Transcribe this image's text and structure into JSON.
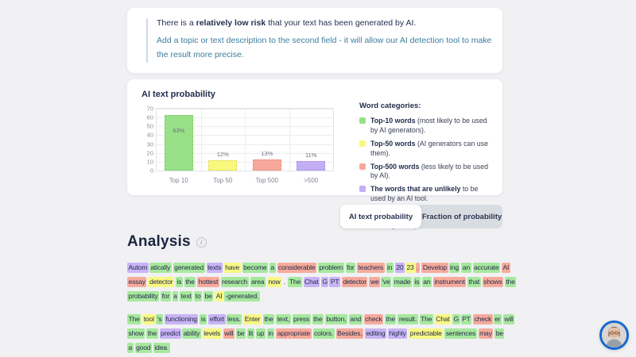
{
  "risk_card": {
    "line1_prefix": "There is a ",
    "line1_bold": "relatively low risk",
    "line1_suffix": " that your text has been generated by AI.",
    "line2": "Add a topic or text description to the second field - it will allow our AI detection tool to make the result more precise."
  },
  "chart_data": {
    "type": "bar",
    "title": "AI text probability",
    "categories": [
      "Top 10",
      "Top 50",
      "Top 500",
      ">500"
    ],
    "values": [
      63,
      12,
      13,
      11
    ],
    "value_labels": [
      "63%",
      "12%",
      "13%",
      "11%"
    ],
    "bar_colors": [
      "#98e087",
      "#f9f87c",
      "#f6a89a",
      "#c4aef3"
    ],
    "bar_border_colors": [
      "#79cf66",
      "#e3dd5c",
      "#eb8a78",
      "#a98fe8"
    ],
    "ylim": [
      0,
      70
    ],
    "yticks": [
      0,
      10,
      20,
      30,
      40,
      50,
      60,
      70
    ],
    "grid": true,
    "xlabel": "",
    "ylabel": "",
    "legend_position": "right"
  },
  "legend": {
    "heading": "Word categories:",
    "items": [
      {
        "color": "#98e087",
        "bold": "Top-10 words",
        "rest": " (most likely to be used by AI generators)."
      },
      {
        "color": "#f9f87c",
        "bold": "Top-50 words",
        "rest": " (AI generators can use them)."
      },
      {
        "color": "#f6a89a",
        "bold": "Top-500 words",
        "rest": " (less likely to be used by AI)."
      },
      {
        "color": "#c4aef3",
        "bold": "The words that are unlikely",
        "rest": " to be used by an AI tool."
      }
    ],
    "note": "An AI-generated text will be colored green with a few yellow pieces."
  },
  "tabs": [
    {
      "label": "AI text probability",
      "active": true
    },
    {
      "label": "Fraction of probability",
      "active": false
    }
  ],
  "analysis": {
    "title": "Analysis",
    "highlight_colors": {
      "g": "#a7e89e",
      "y": "#f9f884",
      "r": "#f6ab9d",
      "p": "#c8b4f5",
      "n": "transparent"
    },
    "paragraphs": [
      {
        "lines": [
          [
            [
              "Autom",
              "p",
              1
            ],
            [
              "atically",
              "g"
            ],
            [
              "generated",
              "g"
            ],
            [
              "texts",
              "p"
            ],
            [
              "have",
              "y"
            ],
            [
              "become",
              "g"
            ],
            [
              "a",
              "g"
            ],
            [
              "considerable",
              "r"
            ],
            [
              "problem",
              "g"
            ],
            [
              "for",
              "g"
            ],
            [
              "teachers",
              "r"
            ],
            [
              "in",
              "g"
            ],
            [
              "20",
              "p",
              1
            ],
            [
              "23",
              "y",
              1
            ],
            [
              ".",
              "r"
            ],
            [
              "Develop",
              "r",
              1
            ],
            [
              "ing",
              "g"
            ],
            [
              "an",
              "g"
            ],
            [
              "accurate",
              "g"
            ],
            [
              "AI",
              "r"
            ]
          ],
          [
            [
              "essay",
              "r"
            ],
            [
              "detector",
              "y"
            ],
            [
              "is",
              "g"
            ],
            [
              "the",
              "g"
            ],
            [
              "hottest",
              "r"
            ],
            [
              "research",
              "g"
            ],
            [
              "area",
              "g"
            ],
            [
              "now",
              "y",
              1
            ],
            [
              ".",
              "n"
            ],
            [
              "The",
              "g"
            ],
            [
              "Chat",
              "p"
            ],
            [
              "G",
              "p",
              1
            ],
            [
              "PT",
              "p"
            ],
            [
              "detector",
              "r"
            ],
            [
              "we",
              "r",
              1
            ],
            [
              "'ve",
              "g"
            ],
            [
              "made",
              "g"
            ],
            [
              "is",
              "g"
            ],
            [
              "an",
              "g"
            ],
            [
              "instrument",
              "r"
            ],
            [
              "that",
              "g"
            ],
            [
              "shows",
              "r"
            ],
            [
              "the",
              "g"
            ]
          ],
          [
            [
              "probability",
              "g"
            ],
            [
              "for",
              "g"
            ],
            [
              "a",
              "g"
            ],
            [
              "text",
              "g"
            ],
            [
              "to",
              "g"
            ],
            [
              "be",
              "g"
            ],
            [
              "AI",
              "y",
              1
            ],
            [
              "-generated.",
              "g"
            ]
          ]
        ]
      },
      {
        "lines": [
          [
            [
              "The",
              "g"
            ],
            [
              "tool",
              "y",
              1
            ],
            [
              "'s",
              "g"
            ],
            [
              "functioning",
              "p"
            ],
            [
              "is",
              "g"
            ],
            [
              "effort",
              "p",
              1
            ],
            [
              "less.",
              "g"
            ],
            [
              "Enter",
              "y"
            ],
            [
              "the",
              "g"
            ],
            [
              "text,",
              "g"
            ],
            [
              "press",
              "g"
            ],
            [
              "the",
              "g"
            ],
            [
              "button,",
              "g"
            ],
            [
              "and",
              "g"
            ],
            [
              "check",
              "r"
            ],
            [
              "the",
              "g"
            ],
            [
              "result.",
              "g"
            ],
            [
              "The",
              "g"
            ],
            [
              "Chat",
              "y"
            ],
            [
              "G",
              "g",
              1
            ],
            [
              "PT",
              "g"
            ],
            [
              "check",
              "r",
              1
            ],
            [
              "er",
              "g"
            ],
            [
              "will",
              "g"
            ]
          ],
          [
            [
              "show",
              "g"
            ],
            [
              "the",
              "g"
            ],
            [
              "predict",
              "p",
              1
            ],
            [
              "ability",
              "g"
            ],
            [
              "levels",
              "y"
            ],
            [
              "will",
              "r"
            ],
            [
              "be",
              "g"
            ],
            [
              "lit",
              "g"
            ],
            [
              "up",
              "g"
            ],
            [
              "in",
              "g"
            ],
            [
              "appropriate",
              "r"
            ],
            [
              "colors.",
              "g"
            ],
            [
              "Besides,",
              "r"
            ],
            [
              "editing",
              "p"
            ],
            [
              "highly",
              "p"
            ],
            [
              "predictable",
              "y"
            ],
            [
              "sentences",
              "g"
            ],
            [
              "may",
              "r"
            ],
            [
              "be",
              "g"
            ]
          ],
          [
            [
              "a",
              "g"
            ],
            [
              "good",
              "g"
            ],
            [
              "idea.",
              "g"
            ]
          ]
        ]
      }
    ]
  },
  "icons": {
    "info": "i"
  }
}
